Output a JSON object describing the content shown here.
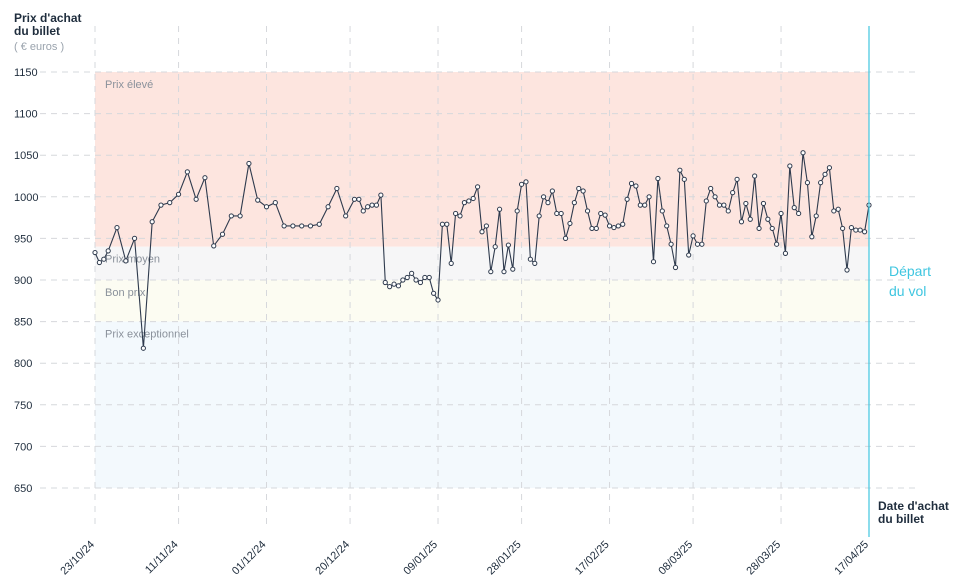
{
  "chart_data": {
    "type": "line",
    "ylabel_line1": "Prix d'achat",
    "ylabel_line2": "du billet",
    "yunit": "( € euros )",
    "xlabel_line1": "Date d'achat",
    "xlabel_line2": "du billet",
    "departure_line1": "Départ",
    "departure_line2": "du vol",
    "ylim": [
      600,
      1200
    ],
    "yticks": [
      650,
      700,
      750,
      800,
      850,
      900,
      950,
      1000,
      1050,
      1100,
      1150
    ],
    "x_range": [
      "2024-10-23",
      "2025-04-17"
    ],
    "xticks": [
      "23/10/24",
      "11/11/24",
      "01/12/24",
      "20/12/24",
      "09/01/25",
      "28/01/25",
      "17/02/25",
      "08/03/25",
      "28/03/25",
      "17/04/25"
    ],
    "zones": [
      {
        "label": "Prix élevé",
        "from": 940,
        "to": 1150,
        "color": "#fde5df"
      },
      {
        "label": "Prix moyen",
        "from": 900,
        "to": 940,
        "color": "#f6f6f7"
      },
      {
        "label": "Bon prix",
        "from": 850,
        "to": 900,
        "color": "#fcfcf2"
      },
      {
        "label": "Prix exceptionnel",
        "from": 650,
        "to": 850,
        "color": "#f3f9fd"
      }
    ],
    "departure_date": "2025-04-17",
    "colors": {
      "line": "#2e3a4d",
      "departure": "#3fc6e0",
      "grid": "#d6d8dc"
    },
    "grid": true,
    "series": [
      {
        "values": [
          [
            "2024-10-23",
            933
          ],
          [
            "2024-10-24",
            921
          ],
          [
            "2024-10-25",
            925
          ],
          [
            "2024-10-26",
            935
          ],
          [
            "2024-10-28",
            963
          ],
          [
            "2024-10-30",
            923
          ],
          [
            "2024-11-01",
            950
          ],
          [
            "2024-11-03",
            818
          ],
          [
            "2024-11-05",
            970
          ],
          [
            "2024-11-07",
            990
          ],
          [
            "2024-11-09",
            993
          ],
          [
            "2024-11-11",
            1003
          ],
          [
            "2024-11-13",
            1030
          ],
          [
            "2024-11-15",
            997
          ],
          [
            "2024-11-17",
            1023
          ],
          [
            "2024-11-19",
            941
          ],
          [
            "2024-11-21",
            955
          ],
          [
            "2024-11-23",
            977
          ],
          [
            "2024-11-25",
            977
          ],
          [
            "2024-11-27",
            1040
          ],
          [
            "2024-11-29",
            996
          ],
          [
            "2024-12-01",
            988
          ],
          [
            "2024-12-03",
            993
          ],
          [
            "2024-12-05",
            965
          ],
          [
            "2024-12-07",
            965
          ],
          [
            "2024-12-09",
            965
          ],
          [
            "2024-12-11",
            965
          ],
          [
            "2024-12-13",
            967
          ],
          [
            "2024-12-15",
            988
          ],
          [
            "2024-12-17",
            1010
          ],
          [
            "2024-12-19",
            977
          ],
          [
            "2024-12-21",
            997
          ],
          [
            "2024-12-22",
            997
          ],
          [
            "2024-12-23",
            983
          ],
          [
            "2024-12-24",
            988
          ],
          [
            "2024-12-25",
            990
          ],
          [
            "2024-12-26",
            990
          ],
          [
            "2024-12-27",
            1002
          ],
          [
            "2024-12-28",
            897
          ],
          [
            "2024-12-29",
            892
          ],
          [
            "2024-12-30",
            895
          ],
          [
            "2024-12-31",
            893
          ],
          [
            "2025-01-01",
            900
          ],
          [
            "2025-01-02",
            903
          ],
          [
            "2025-01-03",
            908
          ],
          [
            "2025-01-04",
            900
          ],
          [
            "2025-01-05",
            897
          ],
          [
            "2025-01-06",
            903
          ],
          [
            "2025-01-07",
            903
          ],
          [
            "2025-01-08",
            884
          ],
          [
            "2025-01-09",
            876
          ],
          [
            "2025-01-10",
            967
          ],
          [
            "2025-01-11",
            967
          ],
          [
            "2025-01-12",
            920
          ],
          [
            "2025-01-13",
            980
          ],
          [
            "2025-01-14",
            977
          ],
          [
            "2025-01-15",
            993
          ],
          [
            "2025-01-16",
            995
          ],
          [
            "2025-01-17",
            998
          ],
          [
            "2025-01-18",
            1012
          ],
          [
            "2025-01-19",
            958
          ],
          [
            "2025-01-20",
            965
          ],
          [
            "2025-01-21",
            910
          ],
          [
            "2025-01-22",
            940
          ],
          [
            "2025-01-23",
            985
          ],
          [
            "2025-01-24",
            910
          ],
          [
            "2025-01-25",
            942
          ],
          [
            "2025-01-26",
            913
          ],
          [
            "2025-01-27",
            983
          ],
          [
            "2025-01-28",
            1015
          ],
          [
            "2025-01-29",
            1018
          ],
          [
            "2025-01-30",
            925
          ],
          [
            "2025-01-31",
            920
          ],
          [
            "2025-02-01",
            977
          ],
          [
            "2025-02-02",
            1000
          ],
          [
            "2025-02-03",
            993
          ],
          [
            "2025-02-04",
            1007
          ],
          [
            "2025-02-05",
            980
          ],
          [
            "2025-02-06",
            980
          ],
          [
            "2025-02-07",
            950
          ],
          [
            "2025-02-08",
            968
          ],
          [
            "2025-02-09",
            993
          ],
          [
            "2025-02-10",
            1010
          ],
          [
            "2025-02-11",
            1007
          ],
          [
            "2025-02-12",
            983
          ],
          [
            "2025-02-13",
            962
          ],
          [
            "2025-02-14",
            962
          ],
          [
            "2025-02-15",
            980
          ],
          [
            "2025-02-16",
            978
          ],
          [
            "2025-02-17",
            965
          ],
          [
            "2025-02-18",
            963
          ],
          [
            "2025-02-19",
            965
          ],
          [
            "2025-02-20",
            967
          ],
          [
            "2025-02-21",
            997
          ],
          [
            "2025-02-22",
            1016
          ],
          [
            "2025-02-23",
            1013
          ],
          [
            "2025-02-24",
            990
          ],
          [
            "2025-02-25",
            990
          ],
          [
            "2025-02-26",
            1000
          ],
          [
            "2025-02-27",
            922
          ],
          [
            "2025-02-28",
            1022
          ],
          [
            "2025-03-01",
            983
          ],
          [
            "2025-03-02",
            965
          ],
          [
            "2025-03-03",
            943
          ],
          [
            "2025-03-04",
            915
          ],
          [
            "2025-03-05",
            1032
          ],
          [
            "2025-03-06",
            1021
          ],
          [
            "2025-03-07",
            930
          ],
          [
            "2025-03-08",
            953
          ],
          [
            "2025-03-09",
            943
          ],
          [
            "2025-03-10",
            943
          ],
          [
            "2025-03-11",
            995
          ],
          [
            "2025-03-12",
            1010
          ],
          [
            "2025-03-13",
            1000
          ],
          [
            "2025-03-14",
            990
          ],
          [
            "2025-03-15",
            990
          ],
          [
            "2025-03-16",
            983
          ],
          [
            "2025-03-17",
            1005
          ],
          [
            "2025-03-18",
            1021
          ],
          [
            "2025-03-19",
            970
          ],
          [
            "2025-03-20",
            992
          ],
          [
            "2025-03-21",
            973
          ],
          [
            "2025-03-22",
            1025
          ],
          [
            "2025-03-23",
            962
          ],
          [
            "2025-03-24",
            992
          ],
          [
            "2025-03-25",
            973
          ],
          [
            "2025-03-26",
            962
          ],
          [
            "2025-03-27",
            943
          ],
          [
            "2025-03-28",
            980
          ],
          [
            "2025-03-29",
            932
          ],
          [
            "2025-03-30",
            1037
          ],
          [
            "2025-03-31",
            987
          ],
          [
            "2025-04-01",
            980
          ],
          [
            "2025-04-02",
            1053
          ],
          [
            "2025-04-03",
            1017
          ],
          [
            "2025-04-04",
            952
          ],
          [
            "2025-04-05",
            977
          ],
          [
            "2025-04-06",
            1017
          ],
          [
            "2025-04-07",
            1027
          ],
          [
            "2025-04-08",
            1035
          ],
          [
            "2025-04-09",
            983
          ],
          [
            "2025-04-10",
            985
          ],
          [
            "2025-04-11",
            962
          ],
          [
            "2025-04-12",
            912
          ],
          [
            "2025-04-13",
            963
          ],
          [
            "2025-04-14",
            960
          ],
          [
            "2025-04-15",
            960
          ],
          [
            "2025-04-16",
            958
          ],
          [
            "2025-04-17",
            990
          ]
        ]
      }
    ]
  }
}
